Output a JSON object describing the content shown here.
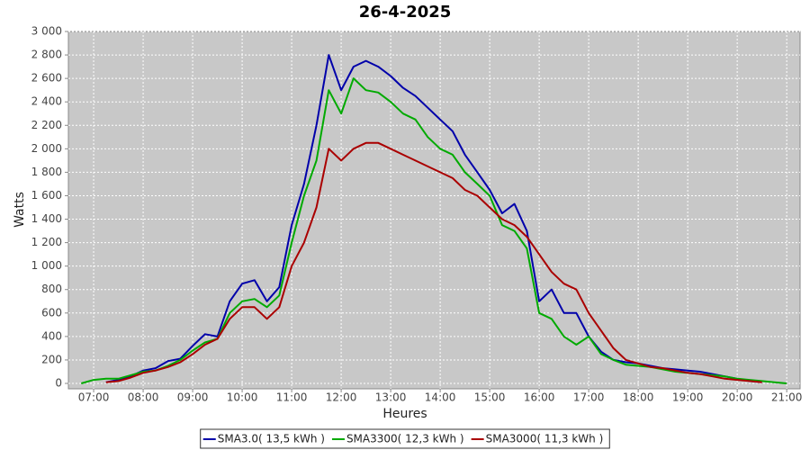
{
  "chart_data": {
    "type": "line",
    "title": "26-4-2025",
    "x_label": "Heures",
    "y_label": "Watts",
    "x": [
      6.75,
      7,
      7.25,
      7.5,
      7.75,
      8,
      8.25,
      8.5,
      8.75,
      9,
      9.25,
      9.5,
      9.75,
      10,
      10.25,
      10.5,
      10.75,
      11,
      11.25,
      11.5,
      11.75,
      12,
      12.25,
      12.5,
      12.75,
      13,
      13.25,
      13.5,
      13.75,
      14,
      14.25,
      14.5,
      14.75,
      15,
      15.25,
      15.5,
      15.75,
      16,
      16.25,
      16.5,
      16.75,
      17,
      17.25,
      17.5,
      17.75,
      18,
      18.25,
      18.5,
      18.75,
      19,
      19.25,
      19.5,
      19.75,
      20,
      20.25,
      20.5,
      20.75,
      21
    ],
    "series": [
      {
        "name": "SMA3.0( 13,5 kWh )",
        "color": "#0000aa",
        "values": [
          null,
          null,
          10,
          30,
          60,
          110,
          130,
          190,
          210,
          320,
          420,
          400,
          700,
          850,
          880,
          700,
          820,
          1350,
          1700,
          2200,
          2800,
          2500,
          2700,
          2750,
          2700,
          2620,
          2520,
          2450,
          2350,
          2250,
          2150,
          1950,
          1800,
          1650,
          1450,
          1530,
          1300,
          700,
          800,
          600,
          600,
          400,
          270,
          200,
          180,
          170,
          150,
          130,
          120,
          110,
          100,
          80,
          60,
          40,
          20,
          10,
          null,
          null
        ]
      },
      {
        "name": "SMA3300( 12,3 kWh )",
        "color": "#00aa00",
        "values": [
          0,
          30,
          40,
          40,
          70,
          100,
          110,
          150,
          200,
          280,
          350,
          380,
          600,
          700,
          720,
          650,
          750,
          1200,
          1600,
          1900,
          2500,
          2300,
          2600,
          2500,
          2480,
          2400,
          2300,
          2250,
          2100,
          2000,
          1950,
          1800,
          1700,
          1600,
          1350,
          1300,
          1150,
          600,
          550,
          400,
          330,
          400,
          250,
          200,
          160,
          150,
          140,
          120,
          100,
          90,
          80,
          70,
          60,
          40,
          30,
          20,
          10,
          0
        ]
      },
      {
        "name": "SMA3000( 11,3 kWh )",
        "color": "#aa0000",
        "values": [
          null,
          null,
          10,
          20,
          50,
          90,
          110,
          140,
          180,
          250,
          330,
          380,
          550,
          650,
          650,
          550,
          650,
          1000,
          1200,
          1500,
          2000,
          1900,
          2000,
          2050,
          2050,
          2000,
          1950,
          1900,
          1850,
          1800,
          1750,
          1650,
          1600,
          1500,
          1400,
          1350,
          1250,
          1100,
          950,
          850,
          800,
          600,
          450,
          300,
          200,
          170,
          140,
          130,
          110,
          90,
          80,
          60,
          40,
          30,
          20,
          10,
          null,
          null
        ]
      }
    ],
    "xlim": [
      6.49,
      21.27
    ],
    "xticks": [
      {
        "value": 7,
        "label": "07:00"
      },
      {
        "value": 8,
        "label": "08:00"
      },
      {
        "value": 9,
        "label": "09:00"
      },
      {
        "value": 10,
        "label": "10:00"
      },
      {
        "value": 11,
        "label": "11:00"
      },
      {
        "value": 12,
        "label": "12:00"
      },
      {
        "value": 13,
        "label": "13:00"
      },
      {
        "value": 14,
        "label": "14:00"
      },
      {
        "value": 15,
        "label": "15:00"
      },
      {
        "value": 16,
        "label": "16:00"
      },
      {
        "value": 17,
        "label": "17:00"
      },
      {
        "value": 18,
        "label": "18:00"
      },
      {
        "value": 19,
        "label": "19:00"
      },
      {
        "value": 20,
        "label": "20:00"
      },
      {
        "value": 21,
        "label": "21:00"
      }
    ],
    "ylim": [
      -46,
      3000
    ],
    "yticks": [
      0,
      200,
      400,
      600,
      800,
      {
        "value": 1000,
        "label": "1 000"
      },
      {
        "value": 1200,
        "label": "1 200"
      },
      {
        "value": 1400,
        "label": "1 400"
      },
      {
        "value": 1600,
        "label": "1 600"
      },
      {
        "value": 1800,
        "label": "1 800"
      },
      {
        "value": 2000,
        "label": "2 000"
      },
      {
        "value": 2200,
        "label": "2 200"
      },
      {
        "value": 2400,
        "label": "2 400"
      },
      {
        "value": 2600,
        "label": "2 600"
      },
      {
        "value": 2800,
        "label": "2 800"
      },
      {
        "value": 3000,
        "label": "3 000"
      }
    ],
    "grid": true,
    "legend": "bottom"
  }
}
